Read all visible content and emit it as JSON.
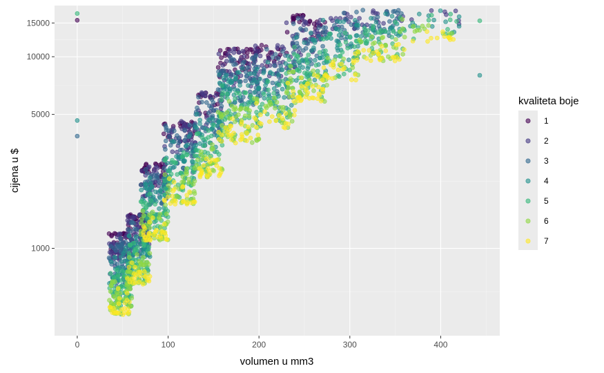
{
  "chart_data": {
    "type": "scatter",
    "title": "",
    "xlabel": "volumen u mm3",
    "ylabel": "cijena u $",
    "x_scale": "linear",
    "y_scale": "log10",
    "xlim": [
      -25,
      465
    ],
    "ylim": [
      350,
      18500
    ],
    "x_ticks": [
      0,
      100,
      200,
      300,
      400
    ],
    "x_tick_labels": [
      "0",
      "100",
      "200",
      "300",
      "400"
    ],
    "y_ticks": [
      1000,
      5000,
      10000,
      15000
    ],
    "y_tick_labels": [
      "1000",
      "5000",
      "10000",
      "15000"
    ],
    "grid": true,
    "legend": {
      "title": "kvaliteta boje",
      "placement": "right",
      "entries": [
        "1",
        "2",
        "3",
        "4",
        "5",
        "6",
        "7"
      ]
    },
    "series_colors": [
      "#440154",
      "#443983",
      "#31688e",
      "#21918c",
      "#35b779",
      "#90d743",
      "#fde725"
    ],
    "point_opacity": 0.6,
    "outliers": [
      {
        "x": 0,
        "y": 16800,
        "group": 5
      },
      {
        "x": 0,
        "y": 15500,
        "group": 1
      },
      {
        "x": 0,
        "y": 4650,
        "group": 4
      },
      {
        "x": 0,
        "y": 3850,
        "group": 3
      },
      {
        "x": 443,
        "y": 8000,
        "group": 4
      },
      {
        "x": 443,
        "y": 15400,
        "group": 5
      }
    ],
    "point_clusters": [
      {
        "x_range": [
          35,
          60
        ],
        "y_range": [
          450,
          1200
        ],
        "count": 320,
        "groups": [
          1,
          2,
          3,
          4,
          5,
          6,
          7
        ]
      },
      {
        "x_range": [
          55,
          80
        ],
        "y_range": [
          650,
          1500
        ],
        "count": 260,
        "groups": [
          1,
          2,
          3,
          4,
          5,
          6,
          7
        ]
      },
      {
        "x_range": [
          70,
          100
        ],
        "y_range": [
          1100,
          2800
        ],
        "count": 260,
        "groups": [
          1,
          2,
          3,
          4,
          5,
          6,
          7
        ]
      },
      {
        "x_range": [
          95,
          130
        ],
        "y_range": [
          1700,
          4600
        ],
        "count": 260,
        "groups": [
          1,
          2,
          3,
          4,
          5,
          6,
          7
        ]
      },
      {
        "x_range": [
          130,
          160
        ],
        "y_range": [
          2300,
          6500
        ],
        "count": 200,
        "groups": [
          1,
          2,
          3,
          4,
          5,
          6,
          7
        ]
      },
      {
        "x_range": [
          155,
          200
        ],
        "y_range": [
          3500,
          11000
        ],
        "count": 320,
        "groups": [
          1,
          2,
          3,
          4,
          5,
          6,
          7
        ]
      },
      {
        "x_range": [
          195,
          240
        ],
        "y_range": [
          4200,
          11500
        ],
        "count": 200,
        "groups": [
          1,
          2,
          3,
          4,
          5,
          6,
          7
        ]
      },
      {
        "x_range": [
          230,
          275
        ],
        "y_range": [
          5800,
          16500
        ],
        "count": 240,
        "groups": [
          1,
          2,
          3,
          4,
          5,
          6,
          7
        ]
      },
      {
        "x_range": [
          270,
          310
        ],
        "y_range": [
          7500,
          17000
        ],
        "count": 130,
        "groups": [
          2,
          3,
          4,
          5,
          6,
          7
        ]
      },
      {
        "x_range": [
          305,
          360
        ],
        "y_range": [
          9500,
          17500
        ],
        "count": 160,
        "groups": [
          2,
          3,
          4,
          5,
          6,
          7
        ]
      },
      {
        "x_range": [
          355,
          425
        ],
        "y_range": [
          12000,
          17500
        ],
        "count": 60,
        "groups": [
          2,
          4,
          5,
          6,
          7
        ]
      }
    ]
  }
}
